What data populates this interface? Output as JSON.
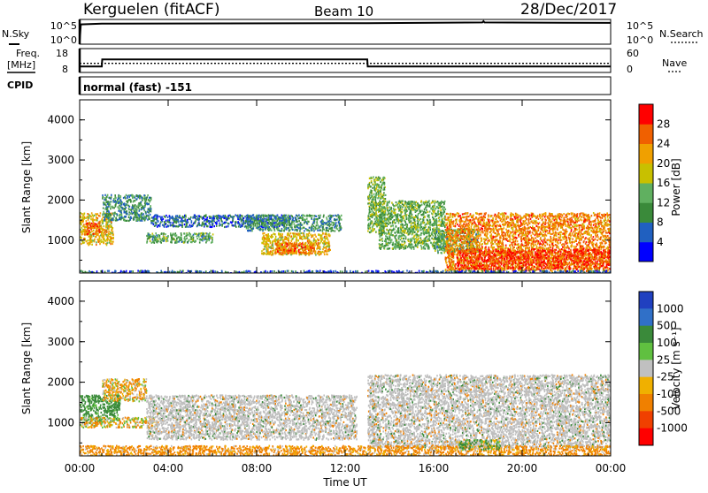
{
  "header": {
    "station": "Kerguelen (fitACF)",
    "beam": "Beam 10",
    "date": "28/Dec/2017"
  },
  "noise_panel": {
    "left_label": "N.Sky",
    "right_label": "N.Search",
    "left_ticks": [
      "10^5",
      "10^0"
    ],
    "right_ticks": [
      "10^5",
      "10^0"
    ]
  },
  "freq_panel": {
    "left_label_1": "Freq.",
    "left_label_2": "[MHz]",
    "right_label": "Nave",
    "left_ticks": [
      "18",
      "8"
    ],
    "right_ticks": [
      "60",
      "0"
    ]
  },
  "cpid_panel": {
    "label": "CPID",
    "text": "normal (fast) -151"
  },
  "power_panel": {
    "ylabel": "Slant Range [km]",
    "yticks": [
      "4000",
      "3000",
      "2000",
      "1000"
    ],
    "colorbar_label": "Power [dB]",
    "colorbar_ticks": [
      "28",
      "24",
      "20",
      "16",
      "12",
      "8",
      "4"
    ]
  },
  "velocity_panel": {
    "ylabel": "Slant Range [km]",
    "yticks": [
      "4000",
      "3000",
      "2000",
      "1000"
    ],
    "colorbar_label": "Velocity [m s⁻¹]",
    "colorbar_ticks": [
      "1000",
      "500",
      "100",
      "25",
      "-25",
      "-100",
      "-500",
      "-1000"
    ]
  },
  "xaxis": {
    "label": "Time UT",
    "ticks": [
      "00:00",
      "04:00",
      "08:00",
      "12:00",
      "16:00",
      "20:00",
      "00:00"
    ]
  },
  "colors": {
    "power_scale": [
      "#0000ff",
      "#2060c0",
      "#3a8a3a",
      "#60b060",
      "#c8c000",
      "#f0a000",
      "#f06000",
      "#ff0000"
    ],
    "velocity_scale": [
      "#2040c0",
      "#3070c8",
      "#3a8a3a",
      "#60c040",
      "#c0c0c0",
      "#f0b000",
      "#f08000",
      "#f04000",
      "#ff0000"
    ],
    "ground_scatter": "#bebebe"
  },
  "chart_data": [
    {
      "type": "line",
      "title": "N.Sky / N.Search",
      "x_unit": "hours UT",
      "xlim": [
        0,
        24
      ],
      "series": [
        {
          "name": "N.Sky",
          "x": [
            0,
            0.05,
            1,
            13,
            18.2,
            18.25,
            18.3,
            24
          ],
          "y": [
            1,
            8,
            8.3,
            8.5,
            8.8,
            9.3,
            8.8,
            8.6
          ]
        }
      ]
    },
    {
      "type": "line",
      "title": "Freq. / Nave",
      "x_unit": "hours UT",
      "xlim": [
        0,
        24
      ],
      "series": [
        {
          "name": "Freq.",
          "x": [
            0,
            0.1,
            1,
            1.02,
            13,
            13.02,
            24
          ],
          "y": [
            10.5,
            10.5,
            10.5,
            13.5,
            13.5,
            10.5,
            10.5
          ]
        },
        {
          "name": "Nave",
          "x": [
            0,
            24
          ],
          "y": [
            23,
            23
          ]
        }
      ]
    },
    {
      "type": "heatmap",
      "title": "Power [dB]",
      "x_unit": "hours UT",
      "y_unit": "km",
      "xlim": [
        0,
        24
      ],
      "ylim": [
        180,
        4500
      ],
      "clim": [
        0,
        30
      ],
      "regions": [
        {
          "t0": 0.0,
          "t1": 1.5,
          "r0": 900,
          "r1": 1700,
          "level": 20
        },
        {
          "t0": 0.2,
          "t1": 0.9,
          "r0": 1150,
          "r1": 1450,
          "level": 26
        },
        {
          "t0": 1.0,
          "t1": 3.2,
          "r0": 1500,
          "r1": 2150,
          "level": 10
        },
        {
          "t0": 3.2,
          "t1": 9.5,
          "r0": 1350,
          "r1": 1650,
          "level": 7
        },
        {
          "t0": 3.0,
          "t1": 6.0,
          "r0": 950,
          "r1": 1200,
          "level": 12
        },
        {
          "t0": 8.2,
          "t1": 11.3,
          "r0": 650,
          "r1": 1200,
          "level": 20
        },
        {
          "t0": 8.8,
          "t1": 10.8,
          "r0": 680,
          "r1": 950,
          "level": 25
        },
        {
          "t0": 7.5,
          "t1": 11.8,
          "r0": 1250,
          "r1": 1650,
          "level": 10
        },
        {
          "t0": 13.0,
          "t1": 13.8,
          "r0": 1200,
          "r1": 2600,
          "level": 14
        },
        {
          "t0": 13.5,
          "t1": 16.5,
          "r0": 800,
          "r1": 2000,
          "level": 13
        },
        {
          "t0": 16.0,
          "t1": 18.0,
          "r0": 700,
          "r1": 1300,
          "level": 12
        },
        {
          "t0": 16.5,
          "t1": 24.0,
          "r0": 250,
          "r1": 1700,
          "level": 24
        },
        {
          "t0": 17.0,
          "t1": 24.0,
          "r0": 300,
          "r1": 800,
          "level": 28
        },
        {
          "t0": 0.0,
          "t1": 24.0,
          "r0": 180,
          "r1": 260,
          "level": 6
        }
      ]
    },
    {
      "type": "heatmap",
      "title": "Velocity [m s⁻¹]",
      "x_unit": "hours UT",
      "y_unit": "km",
      "xlim": [
        0,
        24
      ],
      "ylim": [
        180,
        4500
      ],
      "clim": [
        -1000,
        1000
      ],
      "regions": [
        {
          "t0": 0.0,
          "t1": 1.8,
          "r0": 1050,
          "r1": 1700,
          "level": 200
        },
        {
          "t0": 1.0,
          "t1": 3.0,
          "r0": 1550,
          "r1": 2100,
          "level": -80
        },
        {
          "t0": 0.0,
          "t1": 3.5,
          "r0": 900,
          "r1": 1150,
          "level": -60
        },
        {
          "t0": 3.0,
          "t1": 12.5,
          "r0": 600,
          "r1": 1700,
          "level": 0
        },
        {
          "t0": 13.0,
          "t1": 24.0,
          "r0": 400,
          "r1": 2200,
          "level": 0
        },
        {
          "t0": 0.0,
          "t1": 24.0,
          "r0": 180,
          "r1": 450,
          "level": -150
        },
        {
          "t0": 17.0,
          "t1": 19.0,
          "r0": 350,
          "r1": 600,
          "level": 80
        }
      ]
    }
  ]
}
